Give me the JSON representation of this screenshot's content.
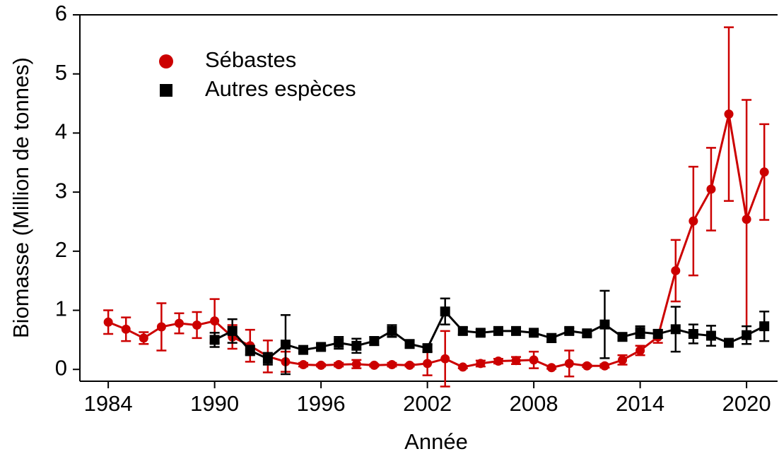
{
  "chart_data": {
    "type": "line",
    "xlabel": "Année",
    "ylabel": "Biomasse (Million de tonnes)",
    "xlim": [
      1982.4,
      2021.75
    ],
    "xticks": [
      1984,
      1990,
      1996,
      2002,
      2008,
      2014,
      2020
    ],
    "ylim": [
      -0.2,
      6
    ],
    "yticks": [
      0,
      1,
      2,
      3,
      4,
      5,
      6
    ],
    "legend": "top-left",
    "series": [
      {
        "name": "Sébastes",
        "color": "#cc0000",
        "marker": "circle",
        "x": [
          1984,
          1985,
          1986,
          1987,
          1988,
          1989,
          1990,
          1991,
          1992,
          1993,
          1994,
          1995,
          1996,
          1997,
          1998,
          1999,
          2000,
          2001,
          2002,
          2003,
          2004,
          2005,
          2006,
          2007,
          2008,
          2009,
          2010,
          2011,
          2012,
          2013,
          2014,
          2015,
          2016,
          2017,
          2018,
          2019,
          2020,
          2021
        ],
        "values": [
          0.8,
          0.68,
          0.53,
          0.72,
          0.78,
          0.75,
          0.82,
          0.55,
          0.4,
          0.22,
          0.13,
          0.08,
          0.07,
          0.08,
          0.09,
          0.07,
          0.08,
          0.07,
          0.1,
          0.18,
          0.04,
          0.1,
          0.14,
          0.15,
          0.16,
          0.03,
          0.1,
          0.06,
          0.06,
          0.16,
          0.32,
          0.55,
          1.67,
          2.51,
          3.05,
          4.32,
          2.54,
          3.34
        ],
        "errors": [
          0.2,
          0.2,
          0.1,
          0.4,
          0.17,
          0.22,
          0.37,
          0.2,
          0.27,
          0.27,
          0.17,
          0.03,
          0.02,
          0.03,
          0.07,
          0.02,
          0.03,
          0.02,
          0.2,
          0.47,
          0.02,
          0.05,
          0.04,
          0.06,
          0.14,
          0.02,
          0.22,
          0.02,
          0.03,
          0.08,
          0.08,
          0.1,
          0.52,
          0.92,
          0.7,
          1.47,
          2.02,
          0.81
        ]
      },
      {
        "name": "Autres espèces",
        "color": "#000000",
        "marker": "square",
        "x": [
          1990,
          1991,
          1992,
          1993,
          1994,
          1995,
          1996,
          1997,
          1998,
          1999,
          2000,
          2001,
          2002,
          2003,
          2004,
          2005,
          2006,
          2007,
          2008,
          2009,
          2010,
          2011,
          2012,
          2013,
          2014,
          2015,
          2016,
          2017,
          2018,
          2019,
          2020,
          2021
        ],
        "values": [
          0.5,
          0.65,
          0.32,
          0.18,
          0.42,
          0.33,
          0.38,
          0.45,
          0.4,
          0.48,
          0.65,
          0.43,
          0.36,
          0.98,
          0.65,
          0.62,
          0.65,
          0.65,
          0.62,
          0.53,
          0.65,
          0.61,
          0.76,
          0.55,
          0.63,
          0.6,
          0.68,
          0.6,
          0.57,
          0.45,
          0.58,
          0.73
        ],
        "errors": [
          0.12,
          0.2,
          0.08,
          0.1,
          0.5,
          0.04,
          0.05,
          0.1,
          0.12,
          0.07,
          0.1,
          0.06,
          0.06,
          0.22,
          0.06,
          0.05,
          0.04,
          0.05,
          0.04,
          0.07,
          0.05,
          0.05,
          0.57,
          0.06,
          0.1,
          0.07,
          0.38,
          0.16,
          0.17,
          0.04,
          0.15,
          0.25
        ]
      }
    ]
  }
}
